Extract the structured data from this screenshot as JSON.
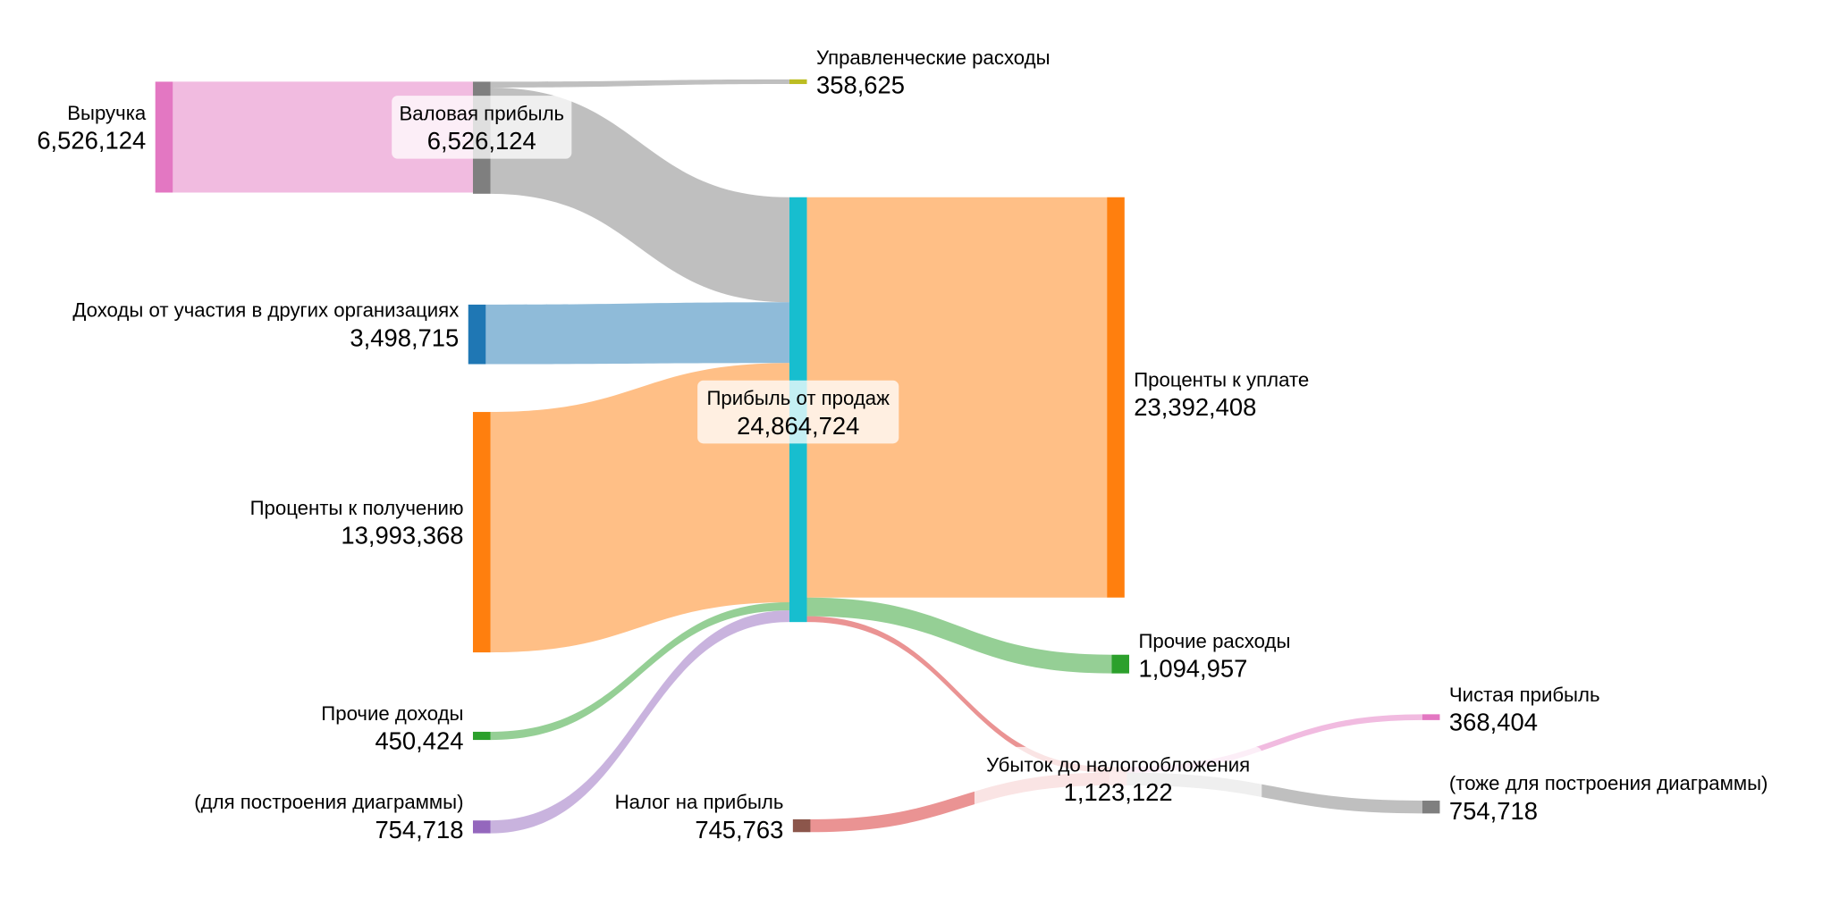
{
  "chart_data": {
    "type": "sankey",
    "title": "",
    "nodes": [
      {
        "id": "revenue",
        "label": "Выручка",
        "value": "6,526,124",
        "color": "#e377c2"
      },
      {
        "id": "gross",
        "label": "Валовая прибыль",
        "value": "6,526,124",
        "color": "#7f7f7f"
      },
      {
        "id": "admin",
        "label": "Управленческие расходы",
        "value": "358,625",
        "color": "#bcbd22"
      },
      {
        "id": "participation",
        "label": "Доходы от участия в других организациях",
        "value": "3,498,715",
        "color": "#1f77b4"
      },
      {
        "id": "int_recv",
        "label": "Проценты к получению",
        "value": "13,993,368",
        "color": "#ff7f0e"
      },
      {
        "id": "other_inc",
        "label": "Прочие доходы",
        "value": "450,424",
        "color": "#2ca02c"
      },
      {
        "id": "aux1",
        "label": "(для построения диаграммы)",
        "value": "754,718",
        "color": "#9467bd"
      },
      {
        "id": "sales_profit",
        "label": "Прибыль от продаж",
        "value": "24,864,724",
        "color": "#17becf"
      },
      {
        "id": "tax",
        "label": "Налог на прибыль",
        "value": "745,763",
        "color": "#8c564b"
      },
      {
        "id": "int_pay",
        "label": "Проценты к уплате",
        "value": "23,392,408",
        "color": "#ff7f0e"
      },
      {
        "id": "other_exp",
        "label": "Прочие расходы",
        "value": "1,094,957",
        "color": "#2ca02c"
      },
      {
        "id": "loss",
        "label": "Убыток до налогообложения",
        "value": "1,123,122",
        "color": "#d62728"
      },
      {
        "id": "net",
        "label": "Чистая прибыль",
        "value": "368,404",
        "color": "#e377c2"
      },
      {
        "id": "aux2",
        "label": "(тоже для построения диаграммы)",
        "value": "754,718",
        "color": "#7f7f7f"
      }
    ],
    "links": [
      {
        "source": "revenue",
        "target": "gross",
        "value": 6526124,
        "color": "#e377c2"
      },
      {
        "source": "gross",
        "target": "admin",
        "value": 358625,
        "color": "#7f7f7f"
      },
      {
        "source": "gross",
        "target": "sales_profit",
        "value": 6167499,
        "color": "#7f7f7f"
      },
      {
        "source": "participation",
        "target": "sales_profit",
        "value": 3498715,
        "color": "#1f77b4"
      },
      {
        "source": "int_recv",
        "target": "sales_profit",
        "value": 13993368,
        "color": "#ff7f0e"
      },
      {
        "source": "other_inc",
        "target": "sales_profit",
        "value": 450424,
        "color": "#2ca02c"
      },
      {
        "source": "aux1",
        "target": "sales_profit",
        "value": 754718,
        "color": "#9467bd"
      },
      {
        "source": "sales_profit",
        "target": "int_pay",
        "value": 23392408,
        "color": "#ff7f0e"
      },
      {
        "source": "sales_profit",
        "target": "other_exp",
        "value": 1094957,
        "color": "#2ca02c"
      },
      {
        "source": "sales_profit",
        "target": "loss",
        "value": 377359,
        "color": "#d62728"
      },
      {
        "source": "tax",
        "target": "loss",
        "value": 745763,
        "color": "#d62728"
      },
      {
        "source": "loss",
        "target": "net",
        "value": 368404,
        "color": "#e377c2"
      },
      {
        "source": "loss",
        "target": "aux2",
        "value": 754718,
        "color": "#7f7f7f"
      }
    ]
  }
}
